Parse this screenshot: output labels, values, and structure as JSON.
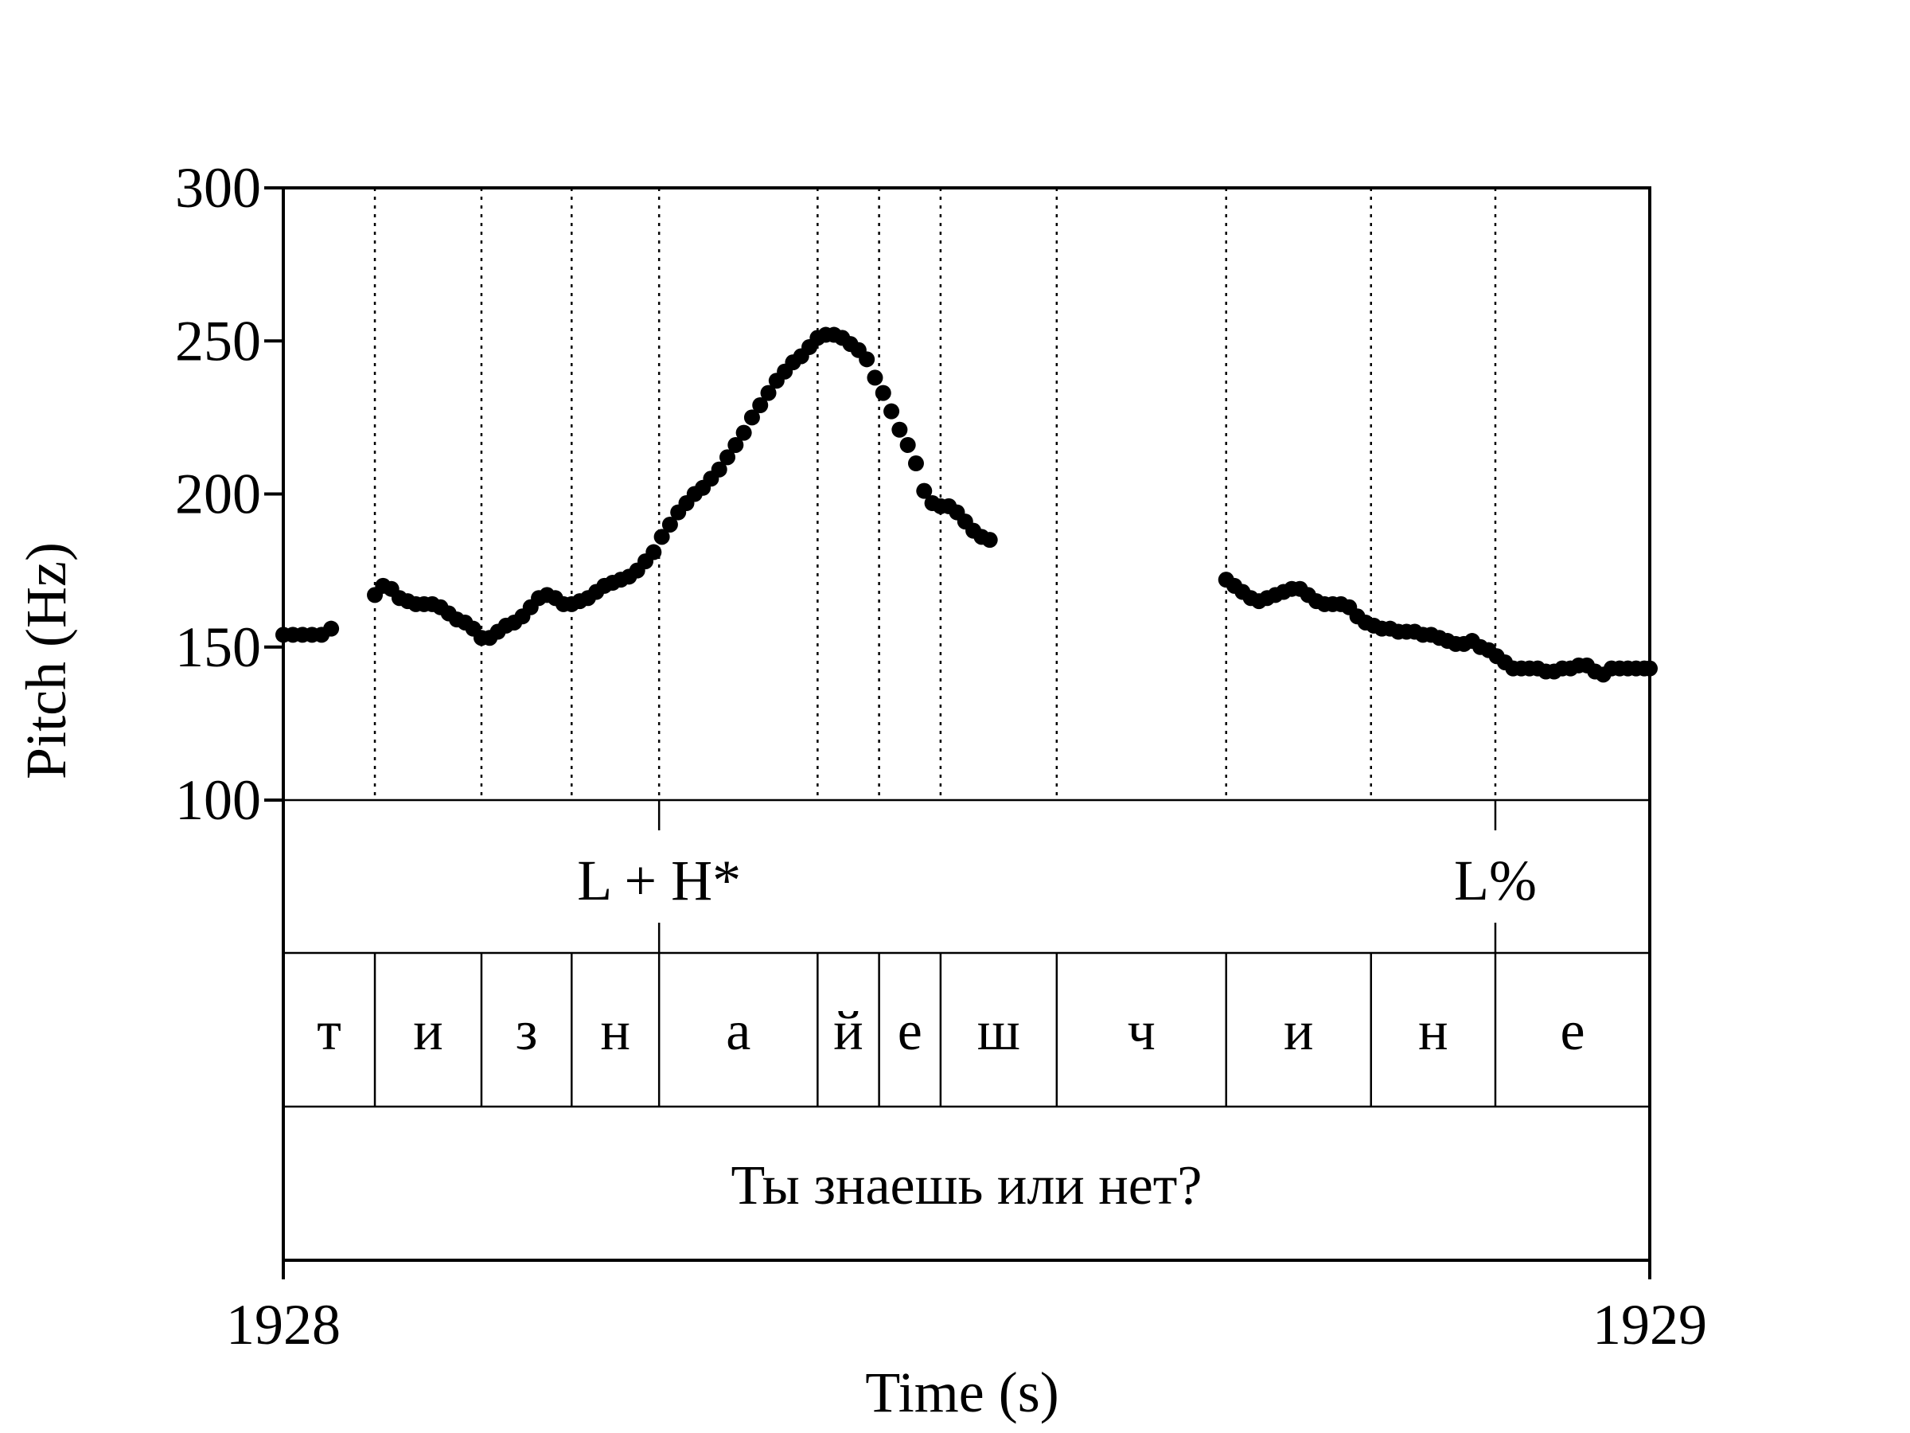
{
  "chart_data": {
    "type": "scatter",
    "title": "",
    "xlabel": "Time (s)",
    "ylabel": "Pitch (Hz)",
    "xlim": [
      1928,
      1929
    ],
    "ylim": [
      100,
      300
    ],
    "x_ticks": [
      "1928",
      "1929"
    ],
    "y_ticks": [
      "100",
      "150",
      "200",
      "250",
      "300"
    ],
    "grid": false,
    "boundaries": [
      1928.067,
      1928.145,
      1928.211,
      1928.275,
      1928.391,
      1928.436,
      1928.481,
      1928.566,
      1928.69,
      1928.796,
      1928.887
    ],
    "series": [
      {
        "points": [
          [
            1928.0,
            154
          ],
          [
            1928.007,
            154
          ],
          [
            1928.014,
            154
          ],
          [
            1928.021,
            154
          ],
          [
            1928.028,
            154
          ],
          [
            1928.035,
            156
          ],
          [
            1928.067,
            167
          ],
          [
            1928.073,
            170
          ],
          [
            1928.079,
            169
          ],
          [
            1928.085,
            166
          ],
          [
            1928.091,
            165
          ],
          [
            1928.097,
            164
          ],
          [
            1928.103,
            164
          ],
          [
            1928.109,
            164
          ],
          [
            1928.115,
            163
          ],
          [
            1928.121,
            161
          ],
          [
            1928.127,
            159
          ],
          [
            1928.133,
            158
          ],
          [
            1928.139,
            156
          ],
          [
            1928.145,
            153
          ],
          [
            1928.151,
            153
          ],
          [
            1928.157,
            155
          ],
          [
            1928.163,
            157
          ],
          [
            1928.169,
            158
          ],
          [
            1928.175,
            160
          ],
          [
            1928.181,
            163
          ],
          [
            1928.187,
            166
          ],
          [
            1928.193,
            167
          ],
          [
            1928.199,
            166
          ],
          [
            1928.205,
            164
          ],
          [
            1928.211,
            164
          ],
          [
            1928.217,
            165
          ],
          [
            1928.223,
            166
          ],
          [
            1928.229,
            168
          ],
          [
            1928.235,
            170
          ],
          [
            1928.241,
            171
          ],
          [
            1928.247,
            172
          ],
          [
            1928.253,
            173
          ],
          [
            1928.259,
            175
          ],
          [
            1928.265,
            178
          ],
          [
            1928.271,
            181
          ],
          [
            1928.277,
            186
          ],
          [
            1928.283,
            190
          ],
          [
            1928.289,
            194
          ],
          [
            1928.295,
            197
          ],
          [
            1928.301,
            200
          ],
          [
            1928.307,
            202
          ],
          [
            1928.313,
            205
          ],
          [
            1928.319,
            208
          ],
          [
            1928.325,
            212
          ],
          [
            1928.331,
            216
          ],
          [
            1928.337,
            220
          ],
          [
            1928.343,
            225
          ],
          [
            1928.349,
            229
          ],
          [
            1928.355,
            233
          ],
          [
            1928.361,
            237
          ],
          [
            1928.367,
            240
          ],
          [
            1928.373,
            243
          ],
          [
            1928.379,
            245
          ],
          [
            1928.385,
            248
          ],
          [
            1928.391,
            251
          ],
          [
            1928.397,
            252
          ],
          [
            1928.403,
            252
          ],
          [
            1928.409,
            251
          ],
          [
            1928.415,
            249
          ],
          [
            1928.421,
            247
          ],
          [
            1928.427,
            244
          ],
          [
            1928.433,
            238
          ],
          [
            1928.439,
            233
          ],
          [
            1928.445,
            227
          ],
          [
            1928.451,
            221
          ],
          [
            1928.457,
            216
          ],
          [
            1928.463,
            210
          ],
          [
            1928.469,
            201
          ],
          [
            1928.475,
            197
          ],
          [
            1928.481,
            196
          ],
          [
            1928.487,
            196
          ],
          [
            1928.493,
            194
          ],
          [
            1928.499,
            191
          ],
          [
            1928.505,
            188
          ],
          [
            1928.511,
            186
          ],
          [
            1928.517,
            185
          ],
          [
            1928.69,
            172
          ],
          [
            1928.696,
            170
          ],
          [
            1928.702,
            168
          ],
          [
            1928.708,
            166
          ],
          [
            1928.714,
            165
          ],
          [
            1928.72,
            166
          ],
          [
            1928.726,
            167
          ],
          [
            1928.732,
            168
          ],
          [
            1928.738,
            169
          ],
          [
            1928.744,
            169
          ],
          [
            1928.75,
            167
          ],
          [
            1928.756,
            165
          ],
          [
            1928.762,
            164
          ],
          [
            1928.768,
            164
          ],
          [
            1928.774,
            164
          ],
          [
            1928.78,
            163
          ],
          [
            1928.786,
            160
          ],
          [
            1928.792,
            158
          ],
          [
            1928.798,
            157
          ],
          [
            1928.804,
            156
          ],
          [
            1928.81,
            156
          ],
          [
            1928.816,
            155
          ],
          [
            1928.822,
            155
          ],
          [
            1928.828,
            155
          ],
          [
            1928.834,
            154
          ],
          [
            1928.84,
            154
          ],
          [
            1928.846,
            153
          ],
          [
            1928.852,
            152
          ],
          [
            1928.858,
            151
          ],
          [
            1928.864,
            151
          ],
          [
            1928.87,
            152
          ],
          [
            1928.876,
            150
          ],
          [
            1928.882,
            149
          ],
          [
            1928.888,
            147
          ],
          [
            1928.894,
            145
          ],
          [
            1928.9,
            143
          ],
          [
            1928.906,
            143
          ],
          [
            1928.912,
            143
          ],
          [
            1928.918,
            143
          ],
          [
            1928.924,
            142
          ],
          [
            1928.93,
            142
          ],
          [
            1928.936,
            143
          ],
          [
            1928.942,
            143
          ],
          [
            1928.948,
            144
          ],
          [
            1928.954,
            144
          ],
          [
            1928.96,
            142
          ],
          [
            1928.966,
            141
          ],
          [
            1928.972,
            143
          ],
          [
            1928.978,
            143
          ],
          [
            1928.984,
            143
          ],
          [
            1928.99,
            143
          ],
          [
            1928.996,
            143
          ],
          [
            1929.0,
            143
          ]
        ]
      }
    ],
    "tones": [
      {
        "label": "L + H*",
        "time": 1928.275
      },
      {
        "label": "L%",
        "time": 1928.887
      }
    ],
    "segments": [
      {
        "label": "т",
        "start": 1928.0,
        "end": 1928.067
      },
      {
        "label": "и",
        "start": 1928.067,
        "end": 1928.145
      },
      {
        "label": "з",
        "start": 1928.145,
        "end": 1928.211
      },
      {
        "label": "н",
        "start": 1928.211,
        "end": 1928.275
      },
      {
        "label": "а",
        "start": 1928.275,
        "end": 1928.391
      },
      {
        "label": "й",
        "start": 1928.391,
        "end": 1928.436
      },
      {
        "label": "е",
        "start": 1928.436,
        "end": 1928.481
      },
      {
        "label": "ш",
        "start": 1928.481,
        "end": 1928.566
      },
      {
        "label": "ч",
        "start": 1928.566,
        "end": 1928.69
      },
      {
        "label": "и",
        "start": 1928.69,
        "end": 1928.796
      },
      {
        "label": "н",
        "start": 1928.796,
        "end": 1928.887
      },
      {
        "label": "е",
        "start": 1928.887,
        "end": 1929.0
      }
    ],
    "sentence": "Ты знаешь или нет?"
  }
}
